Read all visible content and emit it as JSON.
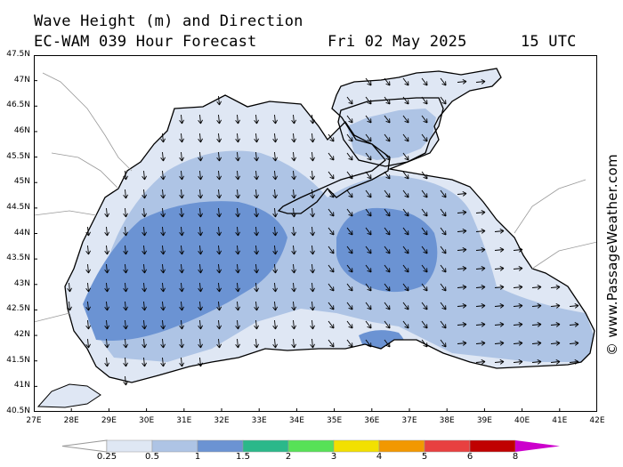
{
  "header": {
    "title": "Wave Height (m) and Direction",
    "model": "EC-WAM 039 Hour Forecast",
    "date": "Fri 02 May 2025",
    "time": "15 UTC"
  },
  "credit": "© www.PassageWeather.com",
  "axes": {
    "lat_labels": [
      "47.5N",
      "47N",
      "46.5N",
      "46N",
      "45.5N",
      "45N",
      "44.5N",
      "44N",
      "43.5N",
      "43N",
      "42.5N",
      "42N",
      "41.5N",
      "41N",
      "40.5N"
    ],
    "lon_labels": [
      "27E",
      "28E",
      "29E",
      "30E",
      "31E",
      "32E",
      "33E",
      "34E",
      "35E",
      "36E",
      "37E",
      "38E",
      "39E",
      "40E",
      "41E",
      "42E"
    ],
    "lat_range": [
      40.5,
      47.5
    ],
    "lon_range": [
      27,
      42
    ]
  },
  "legend": {
    "labels": [
      "0.25",
      "0.5",
      "1",
      "1.5",
      "2",
      "3",
      "4",
      "5",
      "6",
      "8"
    ],
    "colors": [
      "#ffffff",
      "#dfe7f4",
      "#aec4e5",
      "#6b93d3",
      "#2bb88a",
      "#57e157",
      "#f2e000",
      "#f29800",
      "#e84040",
      "#c00000",
      "#cc00cc"
    ]
  },
  "wave_field": {
    "land_color": "#ffffff",
    "sea_low_color": "#dfe7f4",
    "sea_mid_color": "#aec4e5",
    "sea_high_color": "#6b93d3",
    "max_height_m": 1.5,
    "arrow_direction_west_basin": "south",
    "arrow_direction_east_basin": "east"
  }
}
